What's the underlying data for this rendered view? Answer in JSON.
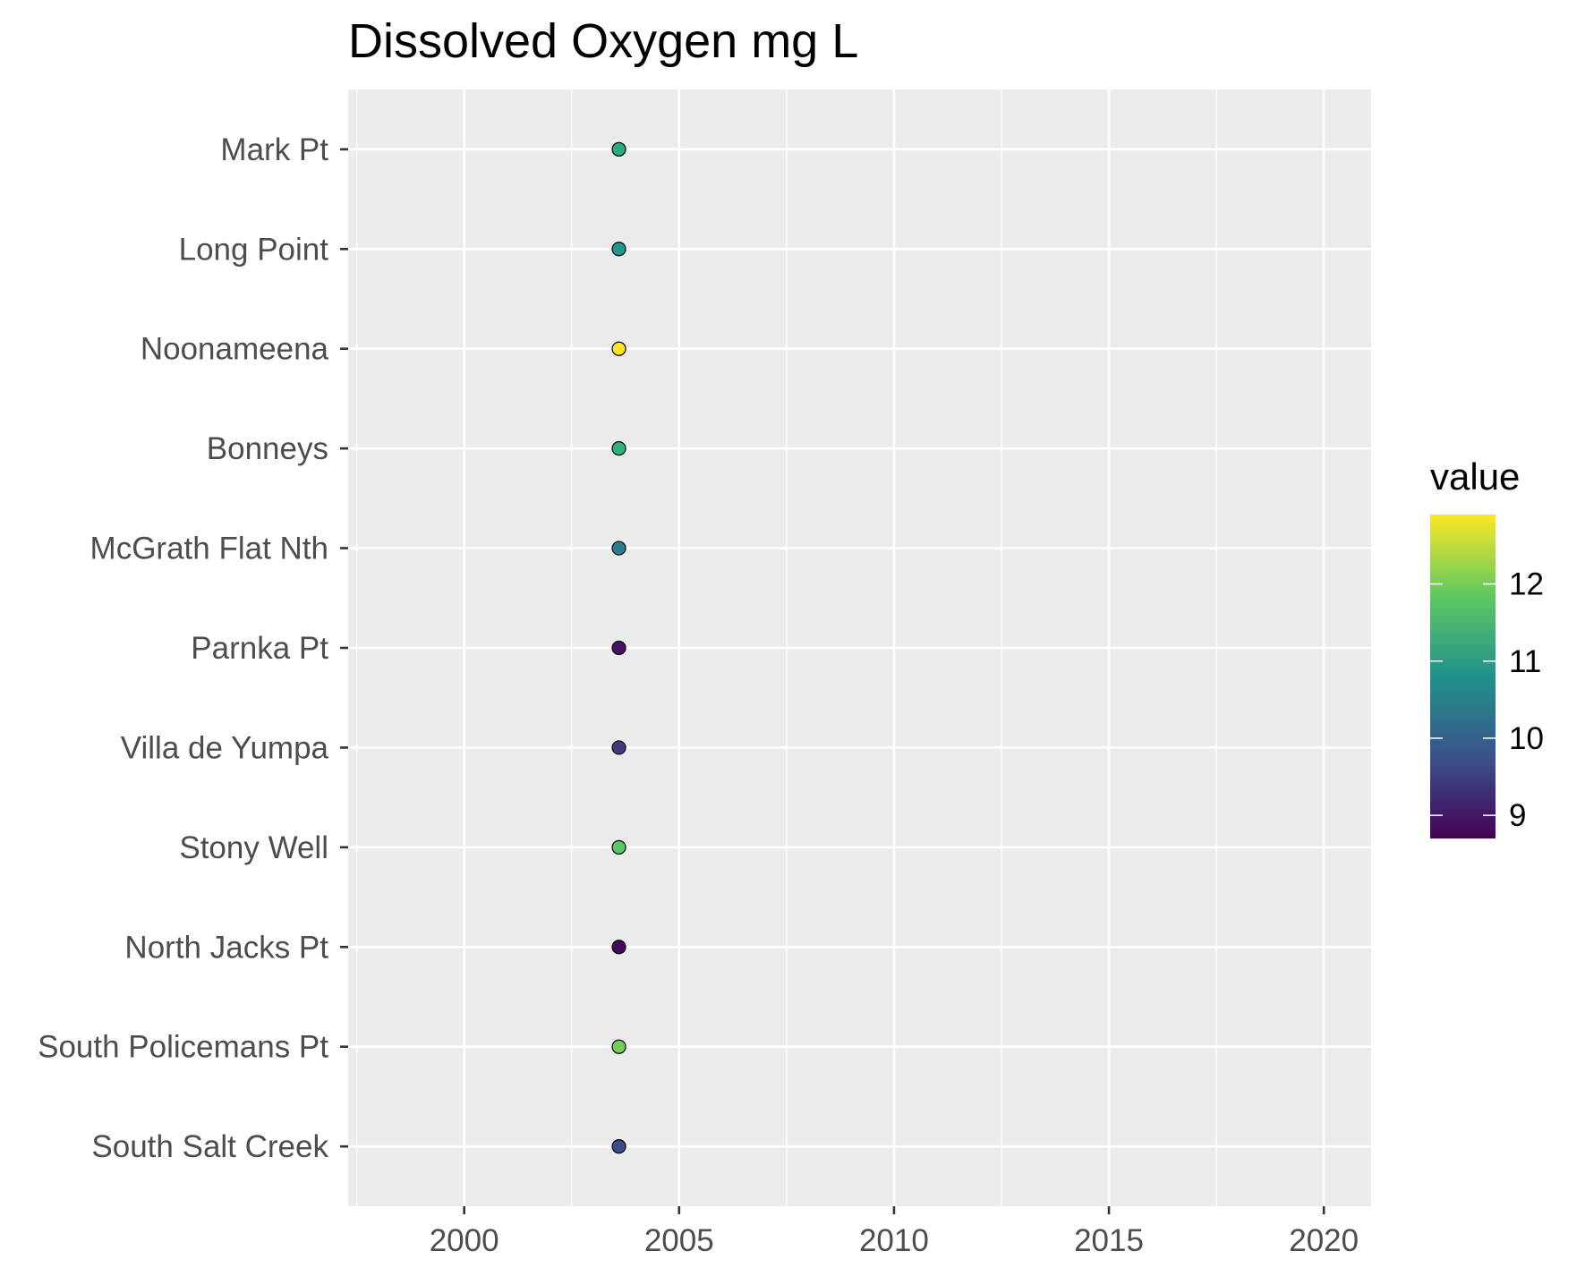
{
  "chart_data": {
    "type": "scatter",
    "title": "Dissolved Oxygen mg L",
    "xlabel": "",
    "ylabel": "",
    "xlim": [
      1997.3,
      2021.1
    ],
    "x_breaks": [
      2000,
      2005,
      2010,
      2015,
      2020
    ],
    "x_tick_labels": [
      "2000",
      "2005",
      "2010",
      "2015",
      "2020"
    ],
    "categories": [
      "South Salt Creek",
      "South Policemans Pt",
      "North Jacks Pt",
      "Stony Well",
      "Villa de Yumpa",
      "Parnka Pt",
      "McGrath Flat Nth",
      "Bonneys",
      "Noonameena",
      "Long Point",
      "Mark Pt"
    ],
    "points": [
      {
        "site": "Mark Pt",
        "x": 2003.6,
        "value": 11.3
      },
      {
        "site": "Long Point",
        "x": 2003.6,
        "value": 10.9
      },
      {
        "site": "Noonameena",
        "x": 2003.6,
        "value": 12.9
      },
      {
        "site": "Bonneys",
        "x": 2003.6,
        "value": 11.4
      },
      {
        "site": "McGrath Flat Nth",
        "x": 2003.6,
        "value": 10.5
      },
      {
        "site": "Parnka Pt",
        "x": 2003.6,
        "value": 8.9
      },
      {
        "site": "Villa de Yumpa",
        "x": 2003.6,
        "value": 9.4
      },
      {
        "site": "Stony Well",
        "x": 2003.6,
        "value": 11.8
      },
      {
        "site": "North Jacks Pt",
        "x": 2003.6,
        "value": 8.8
      },
      {
        "site": "South Policemans Pt",
        "x": 2003.6,
        "value": 12.0
      },
      {
        "site": "South Salt Creek",
        "x": 2003.6,
        "value": 9.7
      }
    ],
    "colorbar": {
      "title": "value",
      "palette": "viridis",
      "range": [
        8.7,
        12.9
      ],
      "breaks": [
        9,
        10,
        11,
        12
      ],
      "labels": [
        "9",
        "10",
        "11",
        "12"
      ]
    },
    "legend_position": "right",
    "grid": true,
    "panel_background": "#ebebeb",
    "grid_color": "#ffffff"
  }
}
